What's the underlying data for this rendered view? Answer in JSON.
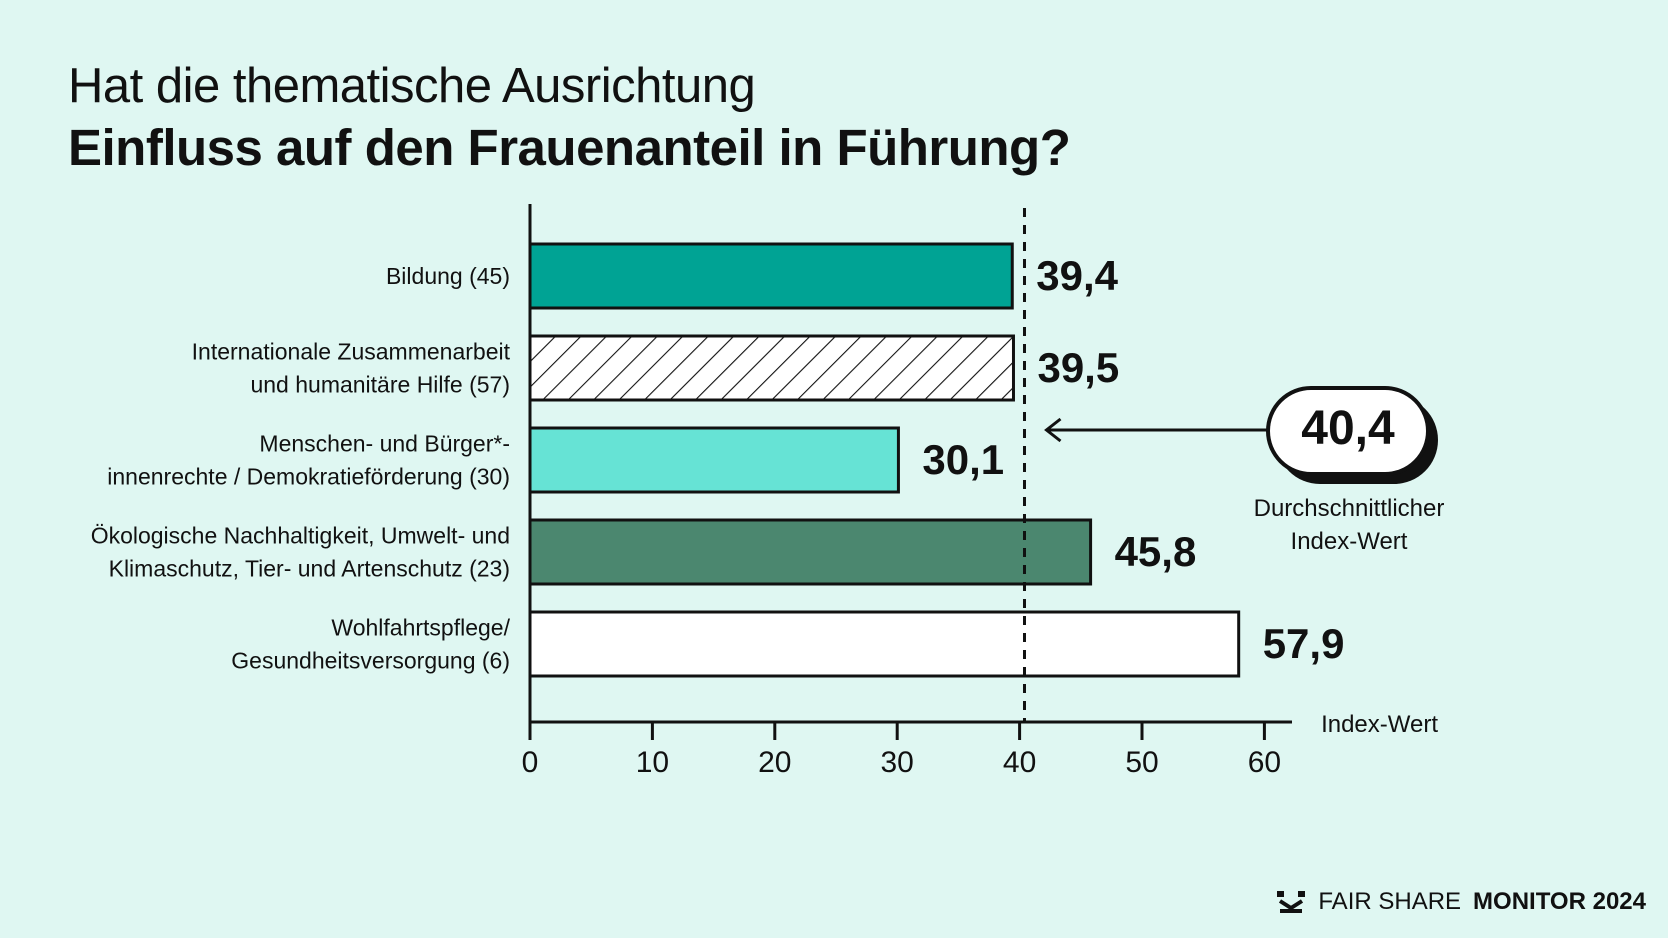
{
  "header": {
    "title_line1": "Hat die thematische Ausrichtung",
    "title_line2": "Einfluss auf den Frauenanteil in Führung?"
  },
  "chart_data": {
    "type": "bar",
    "orientation": "horizontal",
    "categories": [
      [
        "Bildung (45)"
      ],
      [
        "Internationale Zusammenarbeit",
        "und humanitäre Hilfe (57)"
      ],
      [
        "Menschen- und Bürger*-",
        "innenrechte / Demokratieförderung (30)"
      ],
      [
        "Ökologische Nachhaltigkeit, Umwelt- und",
        "Klimaschutz, Tier- und Artenschutz (23)"
      ],
      [
        "Wohlfahrtspflege/",
        "Gesundheitsversorgung (6)"
      ]
    ],
    "values": [
      39.4,
      39.5,
      30.1,
      45.8,
      57.9
    ],
    "value_labels": [
      "39,4",
      "39,5",
      "30,1",
      "45,8",
      "57,9"
    ],
    "bar_colors": [
      "#00a394",
      "hatched",
      "#66e3d5",
      "#4b876f",
      "#ffffff"
    ],
    "xlabel": "Index-Wert",
    "xlim": [
      0,
      60
    ],
    "xticks": [
      0,
      10,
      20,
      30,
      40,
      50,
      60
    ],
    "reference_line": {
      "value": 40.4,
      "label": "40,4",
      "caption": [
        "Durchschnittlicher",
        "Index-Wert"
      ]
    },
    "grid": false,
    "legend": "none"
  },
  "brand": {
    "icon": "fair-share-logo-icon",
    "part1": "FAIR SHARE",
    "part2": "MONITOR 2024"
  }
}
